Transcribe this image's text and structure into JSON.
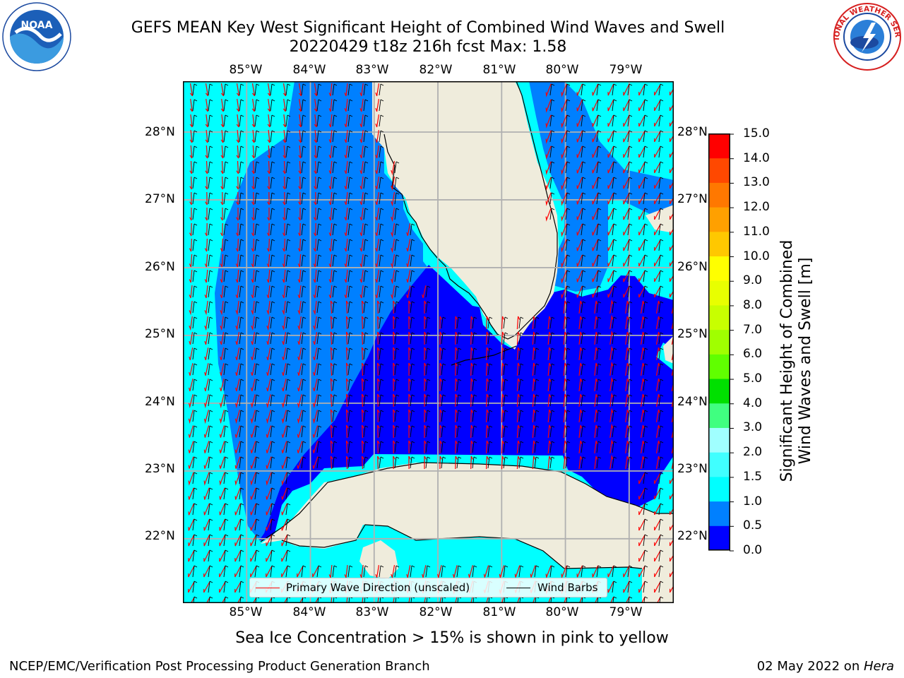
{
  "header": {
    "title_line1": "GEFS MEAN Key West Significant Height of Combined Wind Waves and Swell",
    "title_line2": "20220429 t18z 216h fcst   Max: 1.58"
  },
  "map": {
    "longitudes": [
      "85°W",
      "84°W",
      "83°W",
      "82°W",
      "81°W",
      "80°W",
      "79°W"
    ],
    "latitudes": [
      "28°N",
      "27°N",
      "26°N",
      "25°N",
      "24°N",
      "23°N",
      "22°N"
    ],
    "lon_values": [
      -85,
      -84,
      -83,
      -82,
      -81,
      -80,
      -79
    ],
    "lat_values": [
      28,
      27,
      26,
      25,
      24,
      23,
      22
    ],
    "extent": {
      "lon_min": -86.0,
      "lon_max": -78.3,
      "lat_min": 21.05,
      "lat_max": 28.75
    },
    "land_color": "#efecdc",
    "grid_color": "#b0b0b0",
    "arrow_color": "#ff0000",
    "barb_color": "#000000",
    "regions": [
      {
        "name": "0.0-0.5 m band (Straits / Keys / Bahamas)",
        "color": "#0000ff"
      },
      {
        "name": "0.5-1.0 m band (Gulf shelf / Atlantic coast)",
        "color": "#0080ff"
      },
      {
        "name": "1.0-1.5 m band (open Gulf / NE Atlantic)",
        "color": "#00ffff"
      }
    ]
  },
  "legend": {
    "wave_direction": "Primary Wave Direction (unscaled)",
    "wind_barbs": "Wind Barbs"
  },
  "colorbar": {
    "label_line1": "Significant Height of Combined",
    "label_line2": "Wind Waves and Swell [m]",
    "ticks": [
      "15.0",
      "14.0",
      "13.0",
      "12.0",
      "11.0",
      "10.0",
      "9.0",
      "8.0",
      "7.0",
      "6.0",
      "5.0",
      "4.0",
      "3.0",
      "2.0",
      "1.5",
      "1.0",
      "0.5",
      "0.0"
    ],
    "bins": [
      {
        "range": [
          0.0,
          0.5
        ],
        "color": "#0000ff"
      },
      {
        "range": [
          0.5,
          1.0
        ],
        "color": "#0080ff"
      },
      {
        "range": [
          1.0,
          1.5
        ],
        "color": "#00ffff"
      },
      {
        "range": [
          1.5,
          2.0
        ],
        "color": "#40ffff"
      },
      {
        "range": [
          2.0,
          3.0
        ],
        "color": "#a0ffff"
      },
      {
        "range": [
          3.0,
          4.0
        ],
        "color": "#40ff80"
      },
      {
        "range": [
          4.0,
          5.0
        ],
        "color": "#00e000"
      },
      {
        "range": [
          5.0,
          6.0
        ],
        "color": "#60ff00"
      },
      {
        "range": [
          6.0,
          7.0
        ],
        "color": "#a0ff00"
      },
      {
        "range": [
          7.0,
          8.0
        ],
        "color": "#c8ff00"
      },
      {
        "range": [
          8.0,
          9.0
        ],
        "color": "#e8ff00"
      },
      {
        "range": [
          9.0,
          10.0
        ],
        "color": "#ffff00"
      },
      {
        "range": [
          10.0,
          11.0
        ],
        "color": "#ffc800"
      },
      {
        "range": [
          11.0,
          12.0
        ],
        "color": "#ffa000"
      },
      {
        "range": [
          12.0,
          13.0
        ],
        "color": "#ff7800"
      },
      {
        "range": [
          13.0,
          14.0
        ],
        "color": "#ff4800"
      },
      {
        "range": [
          14.0,
          15.0
        ],
        "color": "#ff0000"
      }
    ]
  },
  "notes": {
    "sea_ice": "Sea Ice Concentration > 15% is shown in pink to yellow"
  },
  "footer": {
    "left": "NCEP/EMC/Verification Post Processing Product Generation Branch",
    "right_date": "02 May 2022 on ",
    "right_host": "Hera"
  },
  "logos": {
    "noaa_text": "NOAA",
    "nws_text": "NATIONAL WEATHER SERVICE"
  }
}
